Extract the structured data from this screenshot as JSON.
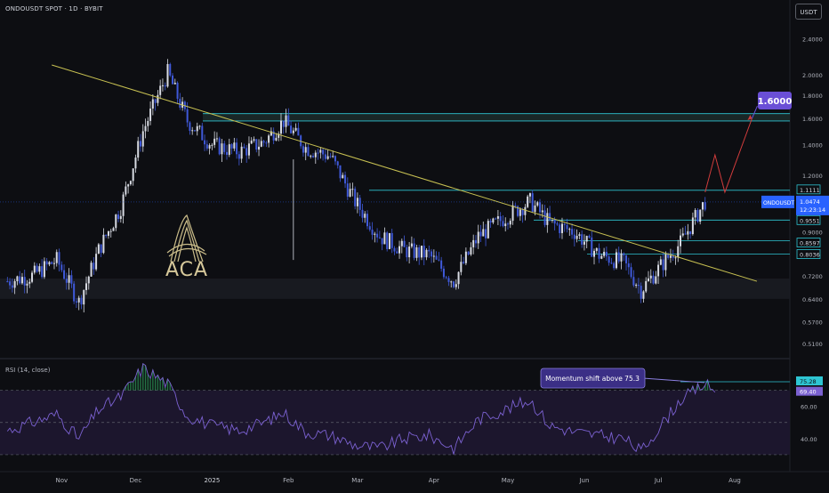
{
  "header": {
    "symbol_line": "ONDOUSDT SPOT · 1D · BYBIT",
    "currency": "USDT"
  },
  "rsi": {
    "title": "RSI (14, close)"
  },
  "logo": {
    "text": "ACA"
  },
  "colors": {
    "background": "#0d0e12",
    "candle_up": "#d8dbe3",
    "candle_down": "#3f59d9",
    "trendline": "#c8c152",
    "level_line": "#2ec5d3",
    "projection": "#d23c3c",
    "target_badge": "#6a4fd6",
    "rsi_line": "#7b61d1",
    "rsi_band": "#1c162d"
  },
  "chart_data": [
    {
      "type": "candlestick",
      "title": "ONDOUSDT SPOT · 1D · BYBIT",
      "yscale": "log",
      "ylim": [
        0.49,
        2.55
      ],
      "y_ticks": [
        "2.4000",
        "2.0000",
        "1.8000",
        "1.6000",
        "1.4000",
        "1.2000",
        "0.9000",
        "0.7200",
        "0.6400",
        "0.5700",
        "0.5100"
      ],
      "x_ticks": [
        "Nov",
        "Dec",
        "2025",
        "Feb",
        "Mar",
        "Apr",
        "May",
        "Jun",
        "Jul",
        "Aug"
      ],
      "close_keypoints": [
        [
          "Oct 10",
          0.7
        ],
        [
          "Oct 20",
          0.72
        ],
        [
          "Oct 30",
          0.78
        ],
        [
          "Nov 8",
          0.63
        ],
        [
          "Nov 16",
          0.82
        ],
        [
          "Nov 25",
          1.02
        ],
        [
          "Dec 4",
          1.5
        ],
        [
          "Dec 14",
          2.02
        ],
        [
          "Dec 22",
          1.58
        ],
        [
          "Jan 1",
          1.4
        ],
        [
          "Jan 12",
          1.35
        ],
        [
          "Jan 22",
          1.42
        ],
        [
          "Jan 30",
          1.58
        ],
        [
          "Feb 8",
          1.38
        ],
        [
          "Feb 18",
          1.32
        ],
        [
          "Feb 28",
          1.05
        ],
        [
          "Mar 10",
          0.88
        ],
        [
          "Mar 20",
          0.82
        ],
        [
          "Mar 30",
          0.8
        ],
        [
          "Apr 9",
          0.7
        ],
        [
          "Apr 19",
          0.88
        ],
        [
          "Apr 30",
          0.97
        ],
        [
          "May 10",
          1.05
        ],
        [
          "May 18",
          0.94
        ],
        [
          "May 28",
          0.9
        ],
        [
          "Jun 7",
          0.8
        ],
        [
          "Jun 17",
          0.77
        ],
        [
          "Jun 24",
          0.67
        ],
        [
          "Jul 4",
          0.78
        ],
        [
          "Jul 10",
          0.85
        ],
        [
          "Jul 20",
          1.05
        ]
      ],
      "last_price": "1.0474",
      "countdown": "12:23:14",
      "symbol_label": "ONDOUSDT",
      "levels": [
        {
          "label": "1.1111",
          "value": 1.1111
        },
        {
          "label": "0.9551",
          "value": 0.9551
        },
        {
          "label": "0.8597",
          "value": 0.8597
        },
        {
          "label": "0.8036",
          "value": 0.8036
        }
      ],
      "resistance_zone": [
        1.58,
        1.64
      ],
      "support_zone": [
        0.64,
        0.71
      ],
      "trendline": {
        "from": [
          "Oct 28",
          2.1
        ],
        "to": [
          "Aug 10",
          0.7
        ]
      },
      "projection": [
        [
          "Jul 20",
          1.1
        ],
        [
          "Jul 24",
          1.33
        ],
        [
          "Jul 28",
          1.1
        ],
        [
          "Aug 8",
          1.6
        ]
      ],
      "target_label": "1.6000"
    },
    {
      "type": "line",
      "title": "RSI (14, close)",
      "ylim": [
        25,
        88
      ],
      "y_ticks": [
        "60.00",
        "40.00"
      ],
      "band": [
        30,
        70
      ],
      "current": "69.40",
      "threshold_label": "75.28",
      "threshold": 75.3,
      "annotation": "Momentum shift above 75.3",
      "keypoints": [
        [
          "Oct 10",
          45
        ],
        [
          "Oct 20",
          50
        ],
        [
          "Oct 30",
          55
        ],
        [
          "Nov 8",
          40
        ],
        [
          "Nov 16",
          58
        ],
        [
          "Nov 25",
          66
        ],
        [
          "Dec 4",
          84
        ],
        [
          "Dec 14",
          74
        ],
        [
          "Dec 22",
          54
        ],
        [
          "Jan 1",
          48
        ],
        [
          "Jan 12",
          45
        ],
        [
          "Jan 22",
          50
        ],
        [
          "Jan 30",
          56
        ],
        [
          "Feb 8",
          44
        ],
        [
          "Feb 18",
          42
        ],
        [
          "Feb 28",
          36
        ],
        [
          "Mar 10",
          34
        ],
        [
          "Mar 20",
          40
        ],
        [
          "Mar 30",
          42
        ],
        [
          "Apr 9",
          34
        ],
        [
          "Apr 19",
          52
        ],
        [
          "Apr 30",
          58
        ],
        [
          "May 10",
          64
        ],
        [
          "May 18",
          48
        ],
        [
          "May 28",
          44
        ],
        [
          "Jun 7",
          42
        ],
        [
          "Jun 17",
          40
        ],
        [
          "Jun 24",
          32
        ],
        [
          "Jul 4",
          52
        ],
        [
          "Jul 10",
          64
        ],
        [
          "Jul 20",
          74
        ],
        [
          "Jul 24",
          69.4
        ]
      ]
    }
  ]
}
